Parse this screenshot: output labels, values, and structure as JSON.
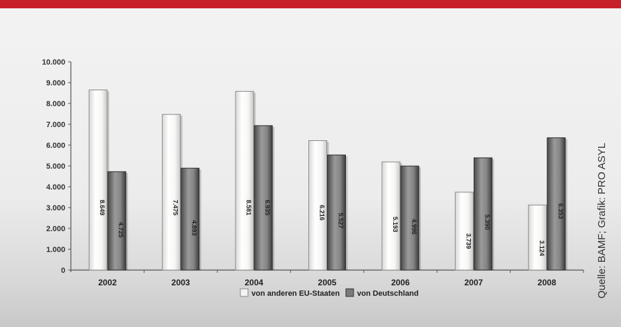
{
  "source_note": "Quelle: BAMF; Grafik: PRO ASYL",
  "chart_data": {
    "type": "bar",
    "categories": [
      "2002",
      "2003",
      "2004",
      "2005",
      "2006",
      "2007",
      "2008"
    ],
    "series": [
      {
        "name": "von anderen EU-Staaten",
        "values": [
          8649,
          7475,
          8581,
          6216,
          5193,
          3739,
          3124
        ],
        "value_labels": [
          "8.649",
          "7.475",
          "8.581",
          "6.216",
          "5.193",
          "3.739",
          "3.124"
        ],
        "color": "#f7f7f5"
      },
      {
        "name": "von Deutschland",
        "values": [
          4725,
          4893,
          6935,
          5527,
          4996,
          5390,
          6353
        ],
        "value_labels": [
          "4.725",
          "4.893",
          "6.935",
          "5.527",
          "4.996",
          "5.390",
          "6.353"
        ],
        "color": "#6e6e6e"
      }
    ],
    "yticks": [
      "0",
      "1.000",
      "2.000",
      "3.000",
      "4.000",
      "5.000",
      "6.000",
      "7.000",
      "8.000",
      "9.000",
      "10.000"
    ],
    "ylim": [
      0,
      10000
    ],
    "legend_position": "bottom-center"
  }
}
